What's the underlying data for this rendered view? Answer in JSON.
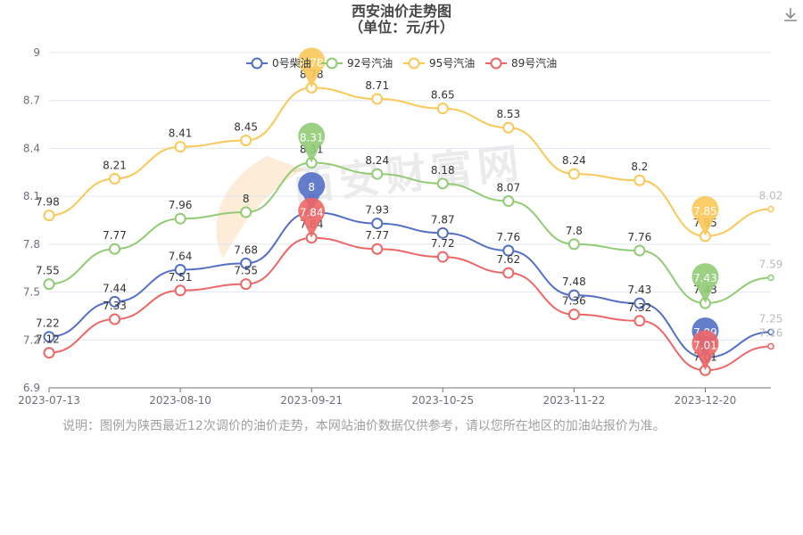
{
  "title": "西安油价走势图",
  "subtitle": "（单位：元/升）",
  "note": "说明：图例为陕西最近12次调价的油价走势，本网站油价数据仅供参考，请以您所在地区的加油站报价为准。",
  "watermark": "西安财富网",
  "icons": {
    "download": "download-icon"
  },
  "chart_data": {
    "type": "line",
    "x": [
      "2023-07-13",
      "2023-07-27",
      "2023-08-10",
      "2023-08-24",
      "2023-09-21",
      "2023-10-11",
      "2023-10-25",
      "2023-11-08",
      "2023-11-22",
      "2023-12-06",
      "2023-12-20",
      "2024-01-03"
    ],
    "xticks": [
      "2023-07-13",
      "2023-08-10",
      "2023-09-21",
      "2023-10-25",
      "2023-11-22",
      "2023-12-20"
    ],
    "ylim": [
      6.9,
      9
    ],
    "yticks": [
      "6.9",
      "7.2",
      "7.5",
      "7.8",
      "8.1",
      "8.4",
      "8.7",
      "9"
    ],
    "grid": true,
    "legend_position": "top-center",
    "series": [
      {
        "name": "0号柴油",
        "color": "#5470c6",
        "values": [
          7.22,
          7.44,
          7.64,
          7.68,
          8.0,
          7.93,
          7.87,
          7.76,
          7.48,
          7.43,
          7.09,
          7.25
        ],
        "max_pin": "8",
        "min_pin": "7.09"
      },
      {
        "name": "92号汽油",
        "color": "#91cc75",
        "values": [
          7.55,
          7.77,
          7.96,
          8.0,
          8.31,
          8.24,
          8.18,
          8.07,
          7.8,
          7.76,
          7.43,
          7.59
        ],
        "max_pin": "8.31",
        "min_pin": "7.43"
      },
      {
        "name": "95号汽油",
        "color": "#fac858",
        "values": [
          7.98,
          8.21,
          8.41,
          8.45,
          8.78,
          8.71,
          8.65,
          8.53,
          8.24,
          8.2,
          7.85,
          8.02
        ],
        "max_pin": "8.78",
        "min_pin": "7.85"
      },
      {
        "name": "89号汽油",
        "color": "#ee6666",
        "values": [
          7.12,
          7.33,
          7.51,
          7.55,
          7.84,
          7.77,
          7.72,
          7.62,
          7.36,
          7.32,
          7.01,
          7.16
        ],
        "max_pin": "7.84",
        "min_pin": "7.01"
      }
    ]
  }
}
